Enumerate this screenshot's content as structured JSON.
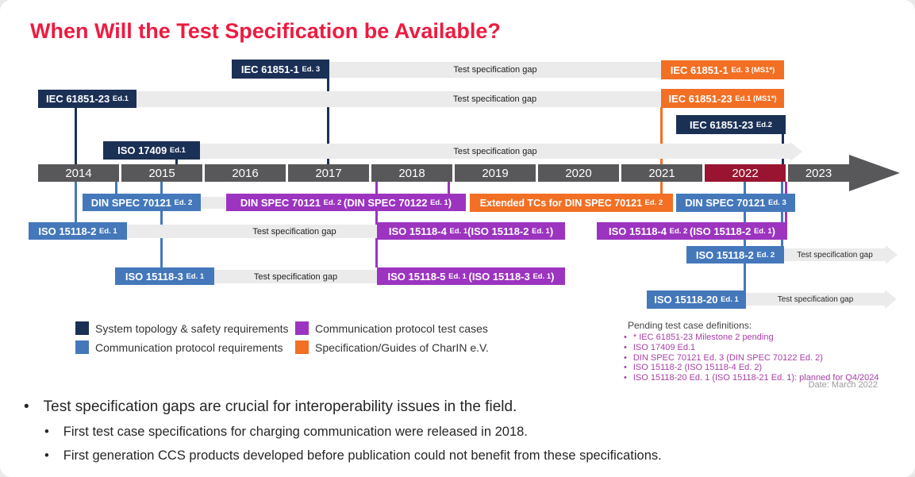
{
  "title": "When Will the Test Specification be Available?",
  "gap_label": "Test specification gap",
  "timeline_years": [
    "2014",
    "2015",
    "2016",
    "2017",
    "2018",
    "2019",
    "2020",
    "2021",
    "2022",
    "2023"
  ],
  "highlight_year": "2022",
  "boxes": {
    "iec_61851_1_ed3": [
      {
        "t": "IEC 61851-1 "
      },
      {
        "t": "Ed. 3",
        "s": true
      }
    ],
    "iec_61851_23_ed1": [
      {
        "t": "IEC 61851-23 "
      },
      {
        "t": "Ed.1",
        "s": true
      }
    ],
    "iso_17409_ed1": [
      {
        "t": "ISO 17409 "
      },
      {
        "t": "Ed.1",
        "s": true
      }
    ],
    "iec_61851_1_ed3_ms1": [
      {
        "t": "IEC 61851-1 "
      },
      {
        "t": "Ed. 3 (MS1*)",
        "s": true
      }
    ],
    "iec_61851_23_ed1_ms1": [
      {
        "t": "IEC 61851-23 "
      },
      {
        "t": "Ed.1 (MS1*)",
        "s": true
      }
    ],
    "iec_61851_23_ed2": [
      {
        "t": "IEC 61851-23 "
      },
      {
        "t": "Ed.2",
        "s": true
      }
    ],
    "din_spec_70121_ed2": [
      {
        "t": "DIN SPEC 70121 "
      },
      {
        "t": "Ed. 2",
        "s": true
      }
    ],
    "din_spec_70121_ed2_70122": [
      {
        "t": "DIN SPEC 70121 "
      },
      {
        "t": "Ed. 2 ",
        "s": true
      },
      {
        "t": "(DIN SPEC 70122 "
      },
      {
        "t": "Ed. 1",
        "s": true
      },
      {
        "t": ")"
      }
    ],
    "extended_tcs": [
      {
        "t": "Extended TCs for DIN SPEC 70121 "
      },
      {
        "t": "Ed. 2",
        "s": true
      }
    ],
    "din_spec_70121_ed3": [
      {
        "t": "DIN SPEC 70121 "
      },
      {
        "t": "Ed. 3",
        "s": true
      }
    ],
    "iso_15118_2_ed1": [
      {
        "t": "ISO 15118-2 "
      },
      {
        "t": "Ed. 1",
        "s": true
      }
    ],
    "iso_15118_4_ed1": [
      {
        "t": "ISO 15118-4 "
      },
      {
        "t": "Ed. 1",
        "s": true
      },
      {
        "t": "(ISO 15118-2 "
      },
      {
        "t": "Ed. 1",
        "s": true
      },
      {
        "t": ")"
      }
    ],
    "iso_15118_4_ed2": [
      {
        "t": "ISO 15118-4 "
      },
      {
        "t": "Ed. 2 ",
        "s": true
      },
      {
        "t": "(ISO 15118-2 "
      },
      {
        "t": "Ed. 1",
        "s": true
      },
      {
        "t": ")"
      }
    ],
    "iso_15118_2_ed2": [
      {
        "t": "ISO 15118-2 "
      },
      {
        "t": "Ed. 2",
        "s": true
      }
    ],
    "iso_15118_3_ed1": [
      {
        "t": "ISO 15118-3 "
      },
      {
        "t": "Ed. 1",
        "s": true
      }
    ],
    "iso_15118_5_ed1": [
      {
        "t": "ISO 15118-5 "
      },
      {
        "t": "Ed. 1 ",
        "s": true
      },
      {
        "t": "(ISO 15118-3 "
      },
      {
        "t": "Ed. 1",
        "s": true
      },
      {
        "t": ")"
      }
    ],
    "iso_15118_20_ed1": [
      {
        "t": "ISO 15118-20 "
      },
      {
        "t": "Ed. 1",
        "s": true
      }
    ]
  },
  "legend": [
    {
      "color": "#1b3055",
      "label": "System topology & safety requirements"
    },
    {
      "color": "#4478bb",
      "label": "Communication protocol requirements"
    },
    {
      "color": "#9c34c0",
      "label": "Communication protocol test cases"
    },
    {
      "color": "#f26f24",
      "label": "Specification/Guides of CharIN e.V."
    }
  ],
  "pending": {
    "header": "Pending test case definitions:",
    "bullet": "•",
    "items": [
      "* IEC 61851-23 Milestone 2 pending",
      "ISO 17409 Ed.1",
      "DIN SPEC 70121 Ed. 3 (DIN SPEC 70122 Ed. 2)",
      "ISO 15118-2 (ISO 15118-4 Ed. 2)",
      "ISO 15118-20 Ed. 1 (ISO 15118-21 Ed. 1): planned for Q4/2024"
    ],
    "date": "Date: March 2022"
  },
  "bullets": {
    "glyph": "•",
    "items": [
      "Test specification gaps are crucial for interoperability issues in the field.",
      "First test case specifications for charging communication were released in 2018.",
      "First generation CCS products developed before publication could not benefit from these specifications."
    ]
  },
  "colors": {
    "title_red": "#ed1b40",
    "navy": "#1b3055",
    "blue": "#4478bb",
    "purple": "#9c34c0",
    "orange": "#f26f24",
    "timeline_gray": "#58585a",
    "highlight_red": "#991430",
    "gap_gray": "#ebebeb",
    "pending_magenta": "#a93fa5"
  }
}
